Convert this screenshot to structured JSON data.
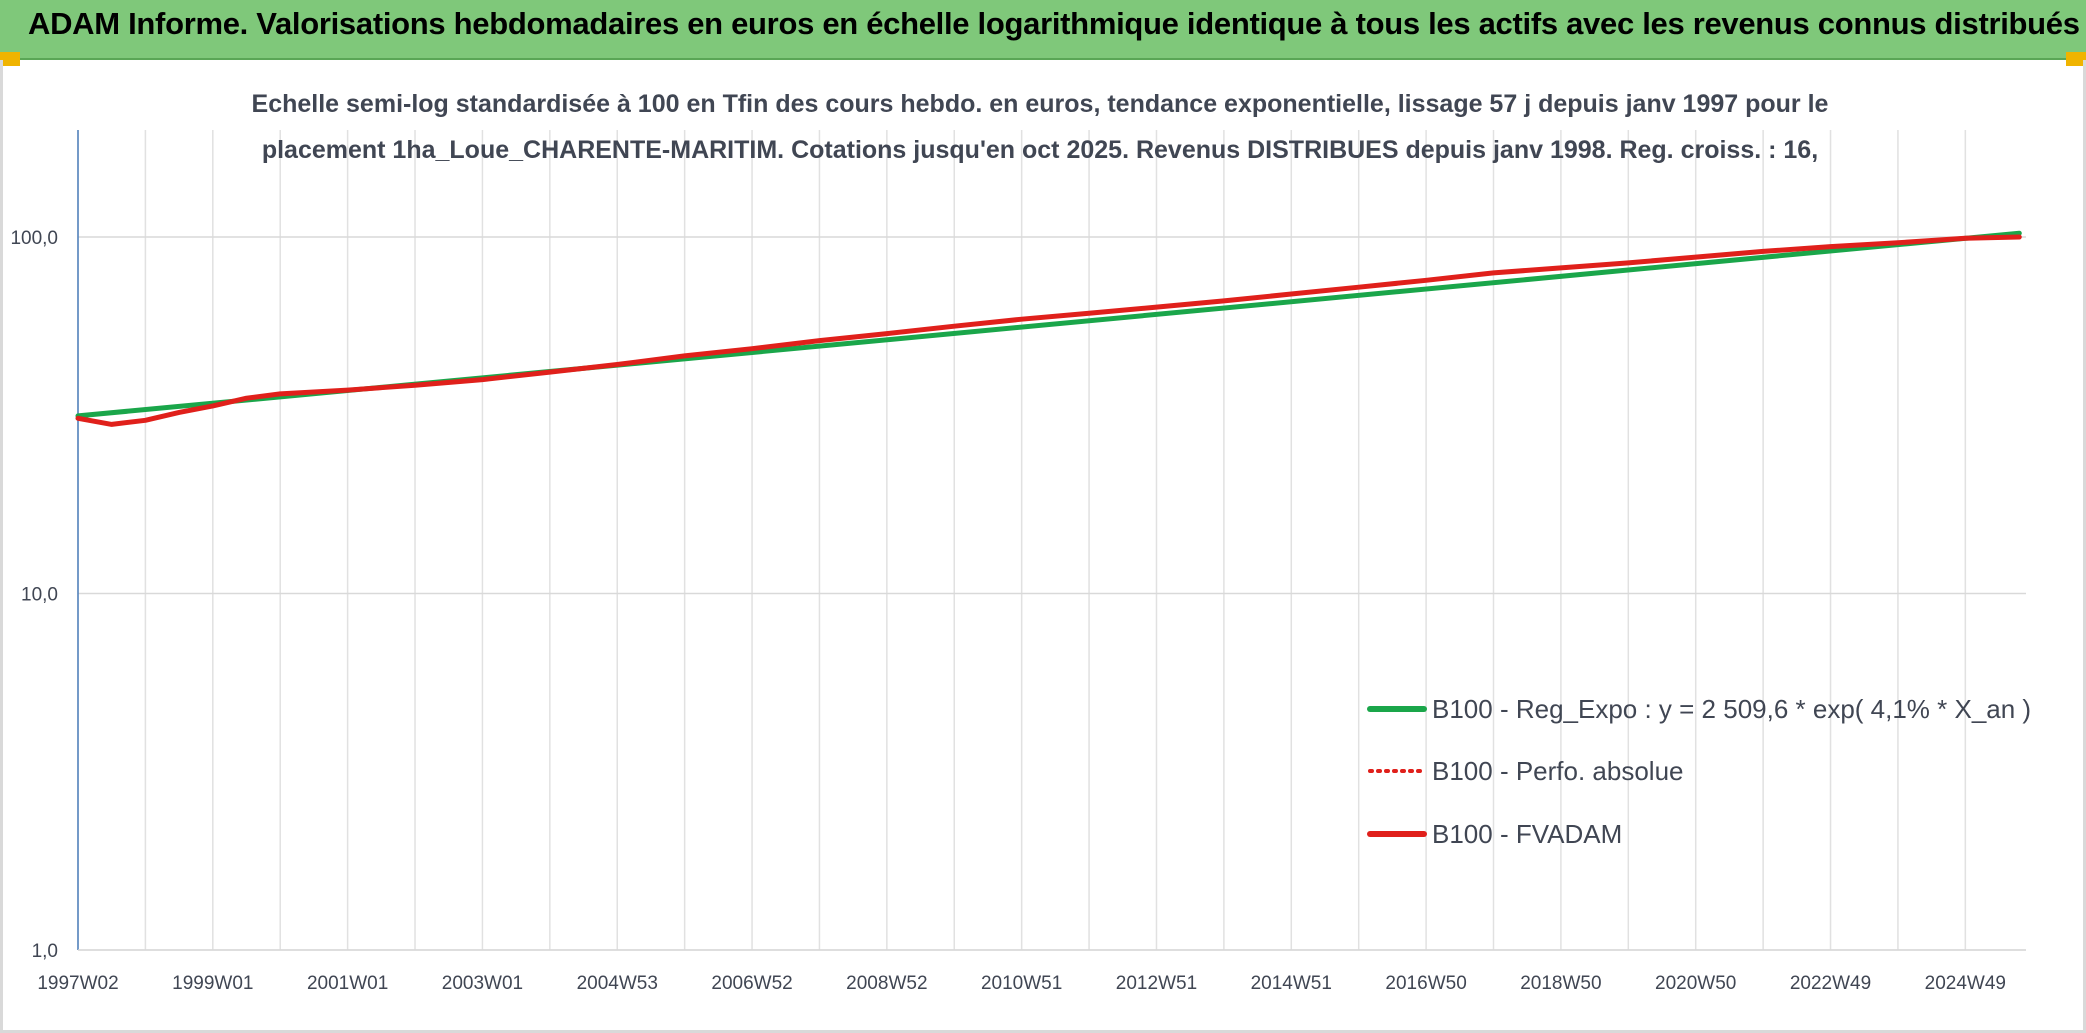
{
  "header": {
    "title": "ADAM Informe. Valorisations hebdomadaires en euros en échelle logarithmique identique à tous les actifs avec les revenus connus distribués"
  },
  "chart_data": {
    "type": "line",
    "title_line1": "Echelle semi-log standardisée à 100 en Tfin des cours hebdo. en euros, tendance exponentielle, lissage 57 j depuis janv 1997 pour le",
    "title_line2": "placement 1ha_Loue_CHARENTE-MARITIM. Cotations jusqu'en oct 2025. Revenus DISTRIBUES depuis janv 1998. Reg. croiss. : 16,",
    "y_scale": "log",
    "ylim": [
      1,
      200
    ],
    "y_ticks": [
      {
        "value": 100,
        "label": "100,0"
      },
      {
        "value": 10,
        "label": "10,0"
      },
      {
        "value": 1,
        "label": "1,0"
      }
    ],
    "x_tick_labels": [
      "1997W02",
      "1999W01",
      "2001W01",
      "2003W01",
      "2004W53",
      "2006W52",
      "2008W52",
      "2010W51",
      "2012W51",
      "2014W51",
      "2016W50",
      "2018W50",
      "2020W50",
      "2022W49",
      "2024W49"
    ],
    "x_tick_years": [
      1997,
      1999,
      2001,
      2003,
      2005,
      2007,
      2009,
      2011,
      2013,
      2015,
      2017,
      2019,
      2021,
      2023,
      2025
    ],
    "xlim": [
      1997,
      2025.9
    ],
    "grid": true,
    "legend_position": "right",
    "series": [
      {
        "name": "B100 - Reg_Expo : y = 2 509,6 * exp( 4,1% *  X_an )",
        "color": "#1aa64a",
        "style": "solid",
        "x": [
          1997.0,
          2025.8
        ],
        "y": [
          31.5,
          102.5
        ]
      },
      {
        "name": "B100 - Perfo. absolue",
        "color": "#e0201b",
        "style": "dotted",
        "x": [
          1997.0,
          1997.5,
          1998.0,
          1998.5,
          1999.0,
          1999.5,
          2000.0,
          2001.0,
          2002.0,
          2003.0,
          2004.0,
          2005.0,
          2006.0,
          2007.0,
          2008.0,
          2009.0,
          2010.0,
          2011.0,
          2012.0,
          2013.0,
          2014.0,
          2015.0,
          2016.0,
          2017.0,
          2018.0,
          2019.0,
          2020.0,
          2021.0,
          2022.0,
          2023.0,
          2024.0,
          2025.0,
          2025.8
        ],
        "y": [
          31.0,
          29.8,
          30.6,
          32.2,
          33.6,
          35.3,
          36.3,
          37.2,
          38.4,
          39.8,
          41.8,
          43.9,
          46.4,
          48.6,
          51.2,
          53.6,
          56.2,
          58.8,
          61.1,
          63.6,
          66.2,
          69.2,
          72.3,
          75.6,
          79.3,
          81.9,
          84.6,
          87.8,
          91.1,
          94.0,
          96.3,
          99.2,
          100.0
        ]
      },
      {
        "name": "B100 - FVADAM",
        "color": "#e0201b",
        "style": "solid",
        "x": [
          1997.0,
          1997.5,
          1998.0,
          1998.5,
          1999.0,
          1999.5,
          2000.0,
          2001.0,
          2002.0,
          2003.0,
          2004.0,
          2005.0,
          2006.0,
          2007.0,
          2008.0,
          2009.0,
          2010.0,
          2011.0,
          2012.0,
          2013.0,
          2014.0,
          2015.0,
          2016.0,
          2017.0,
          2018.0,
          2019.0,
          2020.0,
          2021.0,
          2022.0,
          2023.0,
          2024.0,
          2025.0,
          2025.8
        ],
        "y": [
          31.0,
          29.8,
          30.6,
          32.2,
          33.6,
          35.3,
          36.3,
          37.2,
          38.4,
          39.8,
          41.8,
          43.9,
          46.4,
          48.6,
          51.2,
          53.6,
          56.2,
          58.8,
          61.1,
          63.6,
          66.2,
          69.2,
          72.3,
          75.6,
          79.3,
          81.9,
          84.6,
          87.8,
          91.1,
          94.0,
          96.3,
          99.2,
          100.0
        ]
      }
    ]
  }
}
